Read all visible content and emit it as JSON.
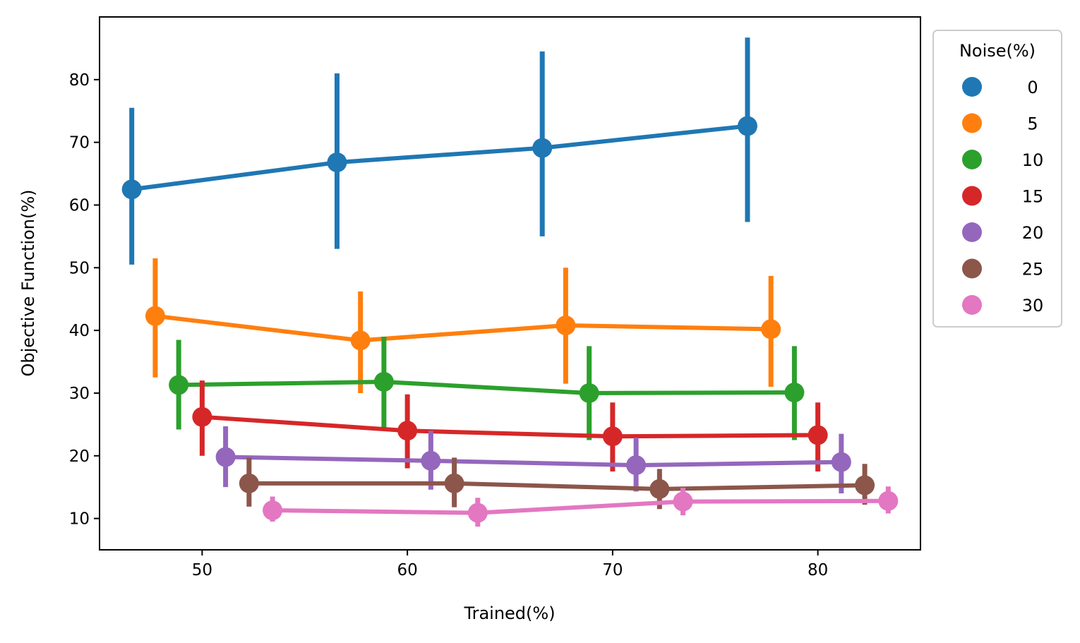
{
  "chart_data": {
    "type": "line",
    "title": "",
    "xlabel": "Trained(%)",
    "ylabel": "Objective Function(%)",
    "x": [
      50,
      60,
      70,
      80
    ],
    "xlim": [
      45,
      85
    ],
    "ylim": [
      5,
      90
    ],
    "xticks": [
      50,
      60,
      70,
      80
    ],
    "yticks": [
      10,
      20,
      30,
      40,
      50,
      60,
      70,
      80
    ],
    "grid": false,
    "error_bars": true,
    "legend": {
      "title": "Noise(%)",
      "placement": "outside-top-right"
    },
    "series": [
      {
        "name": "0",
        "color": "#1f77b4",
        "values": [
          62.5,
          66.8,
          69.1,
          72.6
        ],
        "lower": [
          50.5,
          53.0,
          55.0,
          57.3
        ],
        "upper": [
          75.5,
          81.0,
          84.5,
          86.7
        ]
      },
      {
        "name": "5",
        "color": "#ff7f0e",
        "values": [
          42.3,
          38.4,
          40.8,
          40.2
        ],
        "lower": [
          32.5,
          30.0,
          31.5,
          31.0
        ],
        "upper": [
          51.5,
          46.2,
          50.0,
          48.7
        ]
      },
      {
        "name": "10",
        "color": "#2ca02c",
        "values": [
          31.3,
          31.8,
          30.0,
          30.1
        ],
        "lower": [
          24.2,
          24.0,
          22.5,
          22.5
        ],
        "upper": [
          38.5,
          39.0,
          37.5,
          37.5
        ]
      },
      {
        "name": "15",
        "color": "#d62728",
        "values": [
          26.2,
          24.0,
          23.1,
          23.3
        ],
        "lower": [
          20.0,
          18.0,
          17.5,
          17.5
        ],
        "upper": [
          32.0,
          29.8,
          28.5,
          28.5
        ]
      },
      {
        "name": "20",
        "color": "#9467bd",
        "values": [
          19.8,
          19.2,
          18.5,
          19.0
        ],
        "lower": [
          15.0,
          14.6,
          14.3,
          14.0
        ],
        "upper": [
          24.7,
          24.0,
          22.9,
          23.5
        ]
      },
      {
        "name": "25",
        "color": "#8c564b",
        "values": [
          15.6,
          15.6,
          14.7,
          15.3
        ],
        "lower": [
          11.9,
          11.8,
          11.5,
          12.2
        ],
        "upper": [
          19.7,
          19.7,
          17.9,
          18.7
        ]
      },
      {
        "name": "30",
        "color": "#e377c2",
        "values": [
          11.3,
          10.9,
          12.7,
          12.8
        ],
        "lower": [
          9.5,
          8.7,
          10.5,
          10.8
        ],
        "upper": [
          13.5,
          13.3,
          14.9,
          15.1
        ]
      }
    ]
  }
}
